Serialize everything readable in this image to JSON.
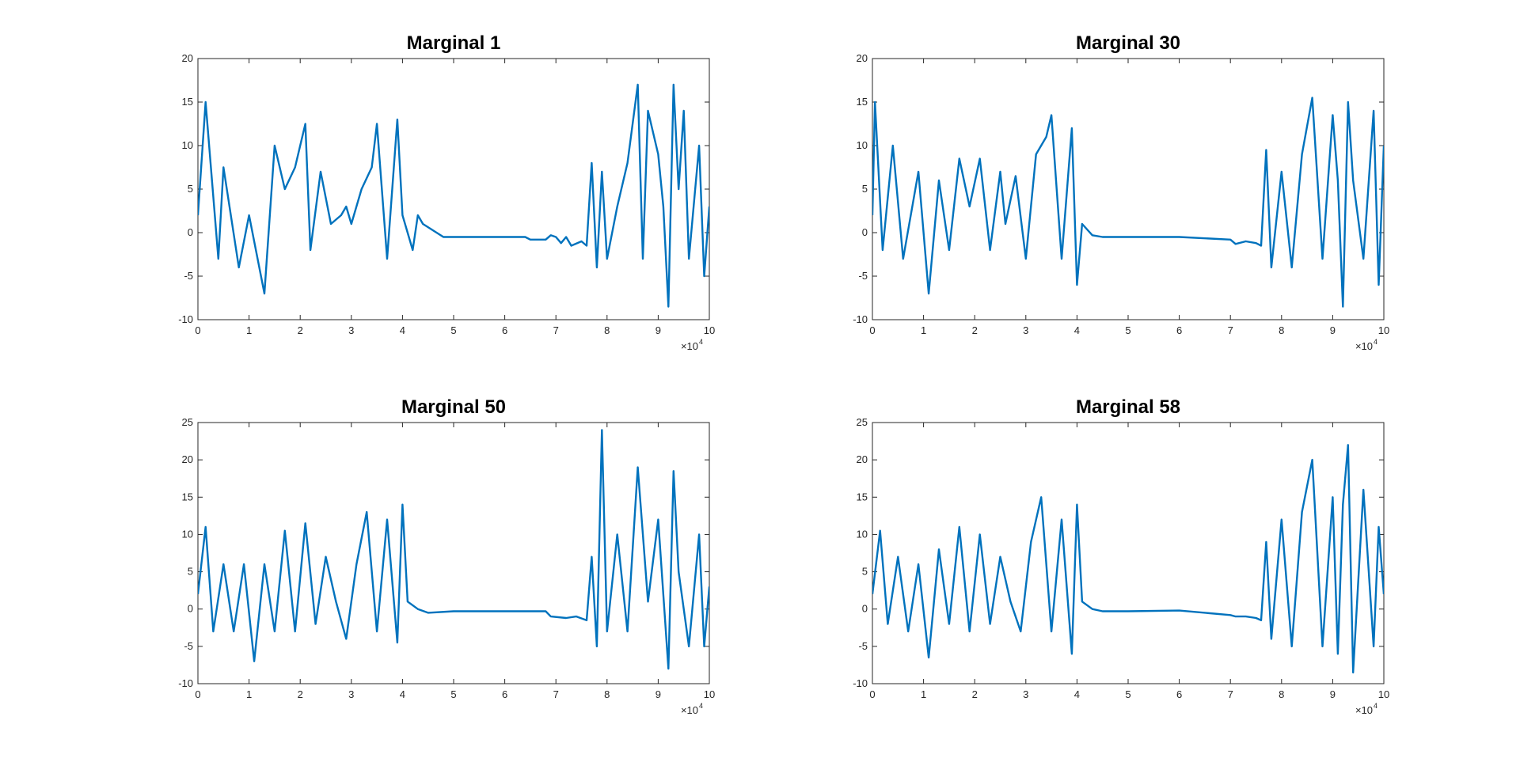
{
  "figure": {
    "background": "#ffffff"
  },
  "chart_data": [
    {
      "type": "line",
      "title": "Marginal 1",
      "xlabel": "",
      "ylabel": "",
      "xlim": [
        0,
        100000
      ],
      "ylim": [
        -10,
        20
      ],
      "x_ticks": [
        0,
        10000,
        20000,
        30000,
        40000,
        50000,
        60000,
        70000,
        80000,
        90000,
        100000
      ],
      "x_tick_labels": [
        "0",
        "1",
        "2",
        "3",
        "4",
        "5",
        "6",
        "7",
        "8",
        "9",
        "10"
      ],
      "x_exponent": {
        "base": "×10",
        "power": "4"
      },
      "y_ticks": [
        -10,
        -5,
        0,
        5,
        10,
        15,
        20
      ],
      "y_tick_labels": [
        "-10",
        "-5",
        "0",
        "5",
        "10",
        "15",
        "20"
      ],
      "grid": false,
      "color": "#0072bd",
      "series": [
        {
          "x": [
            0,
            1500,
            4000,
            5000,
            8000,
            10000,
            13000,
            15000,
            17000,
            19000,
            21000,
            22000,
            24000,
            26000,
            28000,
            29000,
            30000,
            32000,
            34000,
            35000,
            37000,
            39000,
            40000,
            42000,
            43000,
            44000,
            48000,
            55000,
            64000,
            65000,
            68000,
            69000,
            70000,
            71000,
            72000,
            73000,
            75000,
            76000,
            77000,
            78000,
            79000,
            80000,
            82000,
            84000,
            86000,
            87000,
            88000,
            90000,
            91000,
            92000,
            93000,
            94000,
            95000,
            96000,
            98000,
            99000,
            100000
          ],
          "y": [
            2,
            15,
            -3,
            7.5,
            -4,
            2,
            -7,
            10,
            5,
            7.5,
            12.5,
            -2,
            7,
            1,
            2,
            3,
            1,
            5,
            7.5,
            12.5,
            -3,
            13,
            2,
            -2,
            2,
            1,
            -0.5,
            -0.5,
            -0.5,
            -0.8,
            -0.8,
            -0.3,
            -0.5,
            -1.2,
            -0.5,
            -1.5,
            -1,
            -1.5,
            8,
            -4,
            7,
            -3,
            3,
            8,
            17,
            -3,
            14,
            9,
            3,
            -8.5,
            17,
            5,
            14,
            -3,
            10,
            -5,
            3
          ]
        }
      ]
    },
    {
      "type": "line",
      "title": "Marginal 30",
      "xlabel": "",
      "ylabel": "",
      "xlim": [
        0,
        100000
      ],
      "ylim": [
        -10,
        20
      ],
      "x_ticks": [
        0,
        10000,
        20000,
        30000,
        40000,
        50000,
        60000,
        70000,
        80000,
        90000,
        100000
      ],
      "x_tick_labels": [
        "0",
        "1",
        "2",
        "3",
        "4",
        "5",
        "6",
        "7",
        "8",
        "9",
        "10"
      ],
      "x_exponent": {
        "base": "×10",
        "power": "4"
      },
      "y_ticks": [
        -10,
        -5,
        0,
        5,
        10,
        15,
        20
      ],
      "y_tick_labels": [
        "-10",
        "-5",
        "0",
        "5",
        "10",
        "15",
        "20"
      ],
      "grid": false,
      "color": "#0072bd",
      "series": [
        {
          "x": [
            0,
            500,
            2000,
            4000,
            6000,
            9000,
            11000,
            13000,
            15000,
            17000,
            19000,
            21000,
            23000,
            25000,
            26000,
            28000,
            30000,
            32000,
            34000,
            35000,
            37000,
            39000,
            40000,
            41000,
            43000,
            45000,
            50000,
            60000,
            70000,
            71000,
            73000,
            75000,
            76000,
            77000,
            78000,
            80000,
            82000,
            84000,
            86000,
            88000,
            90000,
            91000,
            92000,
            93000,
            94000,
            96000,
            98000,
            99000,
            100000
          ],
          "y": [
            2,
            15,
            -2,
            10,
            -3,
            7,
            -7,
            6,
            -2,
            8.5,
            3,
            8.5,
            -2,
            7,
            1,
            6.5,
            -3,
            9,
            11,
            13.5,
            -3,
            12,
            -6,
            1,
            -0.3,
            -0.5,
            -0.5,
            -0.5,
            -0.8,
            -1.3,
            -1,
            -1.2,
            -1.5,
            9.5,
            -4,
            7,
            -4,
            9,
            15.5,
            -3,
            13.5,
            6,
            -8.5,
            15,
            6,
            -3,
            14,
            -6,
            10
          ]
        }
      ]
    },
    {
      "type": "line",
      "title": "Marginal 50",
      "xlabel": "",
      "ylabel": "",
      "xlim": [
        0,
        100000
      ],
      "ylim": [
        -10,
        25
      ],
      "x_ticks": [
        0,
        10000,
        20000,
        30000,
        40000,
        50000,
        60000,
        70000,
        80000,
        90000,
        100000
      ],
      "x_tick_labels": [
        "0",
        "1",
        "2",
        "3",
        "4",
        "5",
        "6",
        "7",
        "8",
        "9",
        "10"
      ],
      "x_exponent": {
        "base": "×10",
        "power": "4"
      },
      "y_ticks": [
        -10,
        -5,
        0,
        5,
        10,
        15,
        20,
        25
      ],
      "y_tick_labels": [
        "-10",
        "-5",
        "0",
        "5",
        "10",
        "15",
        "20",
        "25"
      ],
      "grid": false,
      "color": "#0072bd",
      "series": [
        {
          "x": [
            0,
            1500,
            3000,
            5000,
            7000,
            9000,
            11000,
            13000,
            15000,
            17000,
            19000,
            21000,
            23000,
            25000,
            27000,
            29000,
            31000,
            33000,
            35000,
            37000,
            39000,
            40000,
            41000,
            43000,
            45000,
            50000,
            60000,
            68000,
            69000,
            72000,
            74000,
            76000,
            77000,
            78000,
            79000,
            80000,
            82000,
            84000,
            86000,
            88000,
            90000,
            92000,
            93000,
            94000,
            96000,
            98000,
            99000,
            100000
          ],
          "y": [
            2,
            11,
            -3,
            6,
            -3,
            6,
            -7,
            6,
            -3,
            10.5,
            -3,
            11.5,
            -2,
            7,
            1,
            -4,
            6,
            13,
            -3,
            12,
            -4.5,
            14,
            1,
            0,
            -0.5,
            -0.3,
            -0.3,
            -0.3,
            -1,
            -1.2,
            -1,
            -1.5,
            7,
            -5,
            24,
            -3,
            10,
            -3,
            19,
            1,
            12,
            -8,
            18.5,
            5,
            -5,
            10,
            -5,
            3
          ]
        }
      ]
    },
    {
      "type": "line",
      "title": "Marginal 58",
      "xlabel": "",
      "ylabel": "",
      "xlim": [
        0,
        100000
      ],
      "ylim": [
        -10,
        25
      ],
      "x_ticks": [
        0,
        10000,
        20000,
        30000,
        40000,
        50000,
        60000,
        70000,
        80000,
        90000,
        100000
      ],
      "x_tick_labels": [
        "0",
        "1",
        "2",
        "3",
        "4",
        "5",
        "6",
        "7",
        "8",
        "9",
        "10"
      ],
      "x_exponent": {
        "base": "×10",
        "power": "4"
      },
      "y_ticks": [
        -10,
        -5,
        0,
        5,
        10,
        15,
        20,
        25
      ],
      "y_tick_labels": [
        "-10",
        "-5",
        "0",
        "5",
        "10",
        "15",
        "20",
        "25"
      ],
      "grid": false,
      "color": "#0072bd",
      "series": [
        {
          "x": [
            0,
            1500,
            3000,
            5000,
            7000,
            9000,
            11000,
            13000,
            15000,
            17000,
            19000,
            21000,
            23000,
            25000,
            27000,
            29000,
            31000,
            33000,
            35000,
            37000,
            39000,
            40000,
            41000,
            43000,
            45000,
            50000,
            60000,
            70000,
            71000,
            73000,
            75000,
            76000,
            77000,
            78000,
            80000,
            82000,
            84000,
            86000,
            88000,
            90000,
            91000,
            92000,
            93000,
            94000,
            96000,
            98000,
            99000,
            100000
          ],
          "y": [
            2,
            10.5,
            -2,
            7,
            -3,
            6,
            -6.5,
            8,
            -2,
            11,
            -3,
            10,
            -2,
            7,
            1,
            -3,
            9,
            15,
            -3,
            12,
            -6,
            14,
            1,
            0,
            -0.3,
            -0.3,
            -0.2,
            -0.8,
            -1,
            -1,
            -1.2,
            -1.5,
            9,
            -4,
            12,
            -5,
            13,
            20,
            -5,
            15,
            -6,
            14,
            22,
            -8.5,
            16,
            -5,
            11,
            2
          ]
        }
      ]
    }
  ]
}
